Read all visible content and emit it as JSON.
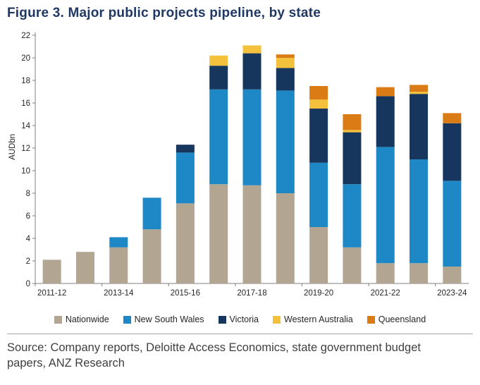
{
  "title": "Figure 3. Major public projects pipeline, by state",
  "source": "Source: Company reports, Deloitte Access Economics, state government budget papers, ANZ Research",
  "colors": {
    "title": "#1f3864",
    "axis": "#7f7f7f",
    "tick_text": "#262626",
    "divider": "#a6a6a6",
    "source_text": "#404040"
  },
  "chart_data": {
    "type": "bar",
    "stacked": true,
    "title": "",
    "xlabel": "",
    "ylabel": "AUDbn",
    "ylim": [
      0,
      22
    ],
    "ytick_step": 2,
    "grid": false,
    "legend_position": "bottom",
    "categories": [
      "2011-12",
      "2012-13",
      "2013-14",
      "2014-15",
      "2015-16",
      "2016-17",
      "2017-18",
      "2018-19",
      "2019-20",
      "2020-21",
      "2021-22",
      "2022-23",
      "2023-24"
    ],
    "x_tick_labels_shown": [
      "2011-12",
      "2013-14",
      "2015-16",
      "2017-18",
      "2019-20",
      "2021-22",
      "2023-24"
    ],
    "x_label_interval": 2,
    "series": [
      {
        "name": "Nationwide",
        "color": "#b2a592",
        "values": [
          2.1,
          2.8,
          3.2,
          4.8,
          7.1,
          8.8,
          8.7,
          8.0,
          5.0,
          3.2,
          1.8,
          1.8,
          1.5
        ]
      },
      {
        "name": "New South Wales",
        "color": "#1e87c6",
        "values": [
          0,
          0,
          0.9,
          2.8,
          4.5,
          8.4,
          8.5,
          9.1,
          5.7,
          5.6,
          10.3,
          9.2,
          7.6
        ]
      },
      {
        "name": "Victoria",
        "color": "#17365d",
        "values": [
          0,
          0,
          0,
          0,
          0.7,
          2.1,
          3.2,
          2.0,
          4.8,
          4.6,
          4.5,
          5.8,
          5.1
        ]
      },
      {
        "name": "Western Australia",
        "color": "#f3c13c",
        "values": [
          0,
          0,
          0,
          0,
          0,
          0.9,
          0.7,
          0.9,
          0.8,
          0.2,
          0,
          0.2,
          0
        ]
      },
      {
        "name": "Queensland",
        "color": "#da7b15",
        "values": [
          0,
          0,
          0,
          0,
          0,
          0,
          0,
          0.3,
          1.2,
          1.4,
          0.8,
          0.6,
          0.9
        ]
      }
    ]
  }
}
